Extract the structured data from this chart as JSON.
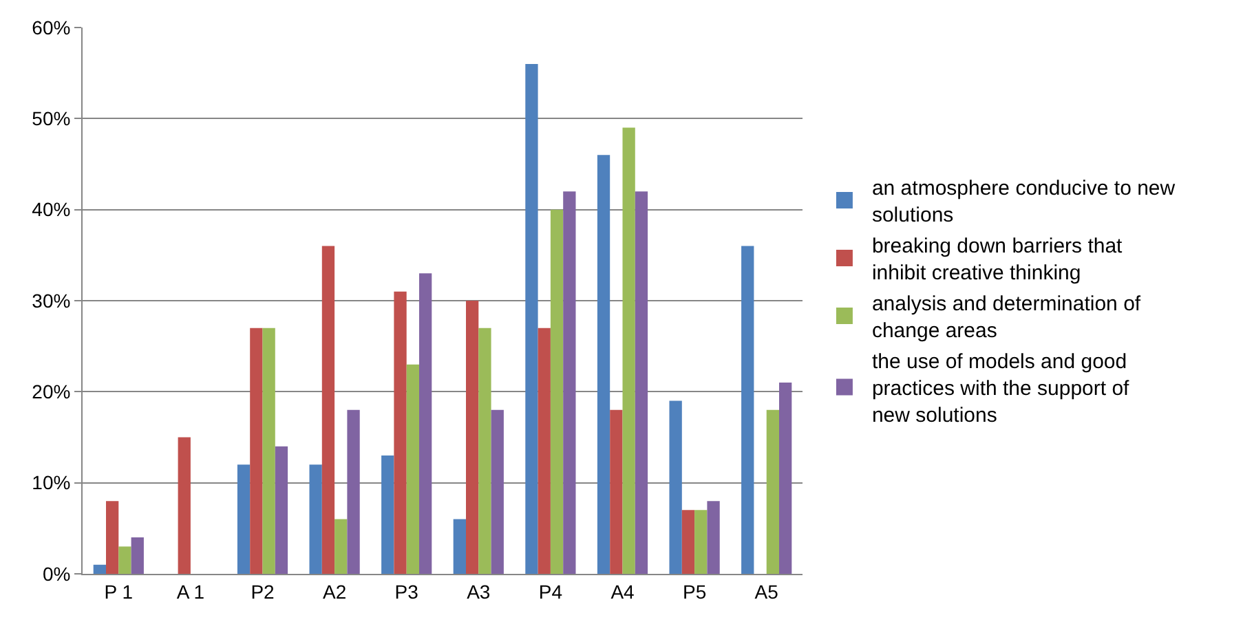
{
  "chart_data": {
    "type": "bar",
    "categories": [
      "P 1",
      "A 1",
      "P2",
      "A2",
      "P3",
      "A3",
      "P4",
      "A4",
      "P5",
      "A5"
    ],
    "series": [
      {
        "name": "an atmosphere conducive to new solutions",
        "color": "#4f81bd",
        "values": [
          1,
          0,
          12,
          12,
          13,
          6,
          56,
          46,
          19,
          36
        ]
      },
      {
        "name": "breaking down barriers that inhibit creative thinking",
        "color": "#c0504d",
        "values": [
          8,
          15,
          27,
          36,
          31,
          30,
          27,
          18,
          7,
          0
        ]
      },
      {
        "name": "analysis and determination of change areas",
        "color": "#9bbb59",
        "values": [
          3,
          0,
          27,
          6,
          23,
          27,
          40,
          49,
          7,
          18
        ]
      },
      {
        "name": "the use of models and good practices with the support of new solutions",
        "color": "#8064a2",
        "values": [
          4,
          0,
          14,
          18,
          33,
          18,
          42,
          42,
          8,
          21
        ]
      }
    ],
    "ylim": [
      0,
      60
    ],
    "yticks": [
      {
        "value": 0,
        "label": "0%"
      },
      {
        "value": 10,
        "label": "10%"
      },
      {
        "value": 20,
        "label": "20%"
      },
      {
        "value": 30,
        "label": "30%"
      },
      {
        "value": 40,
        "label": "40%"
      },
      {
        "value": 50,
        "label": "50%"
      },
      {
        "value": 60,
        "label": "60%"
      }
    ],
    "grid": "y",
    "legend": "right"
  }
}
